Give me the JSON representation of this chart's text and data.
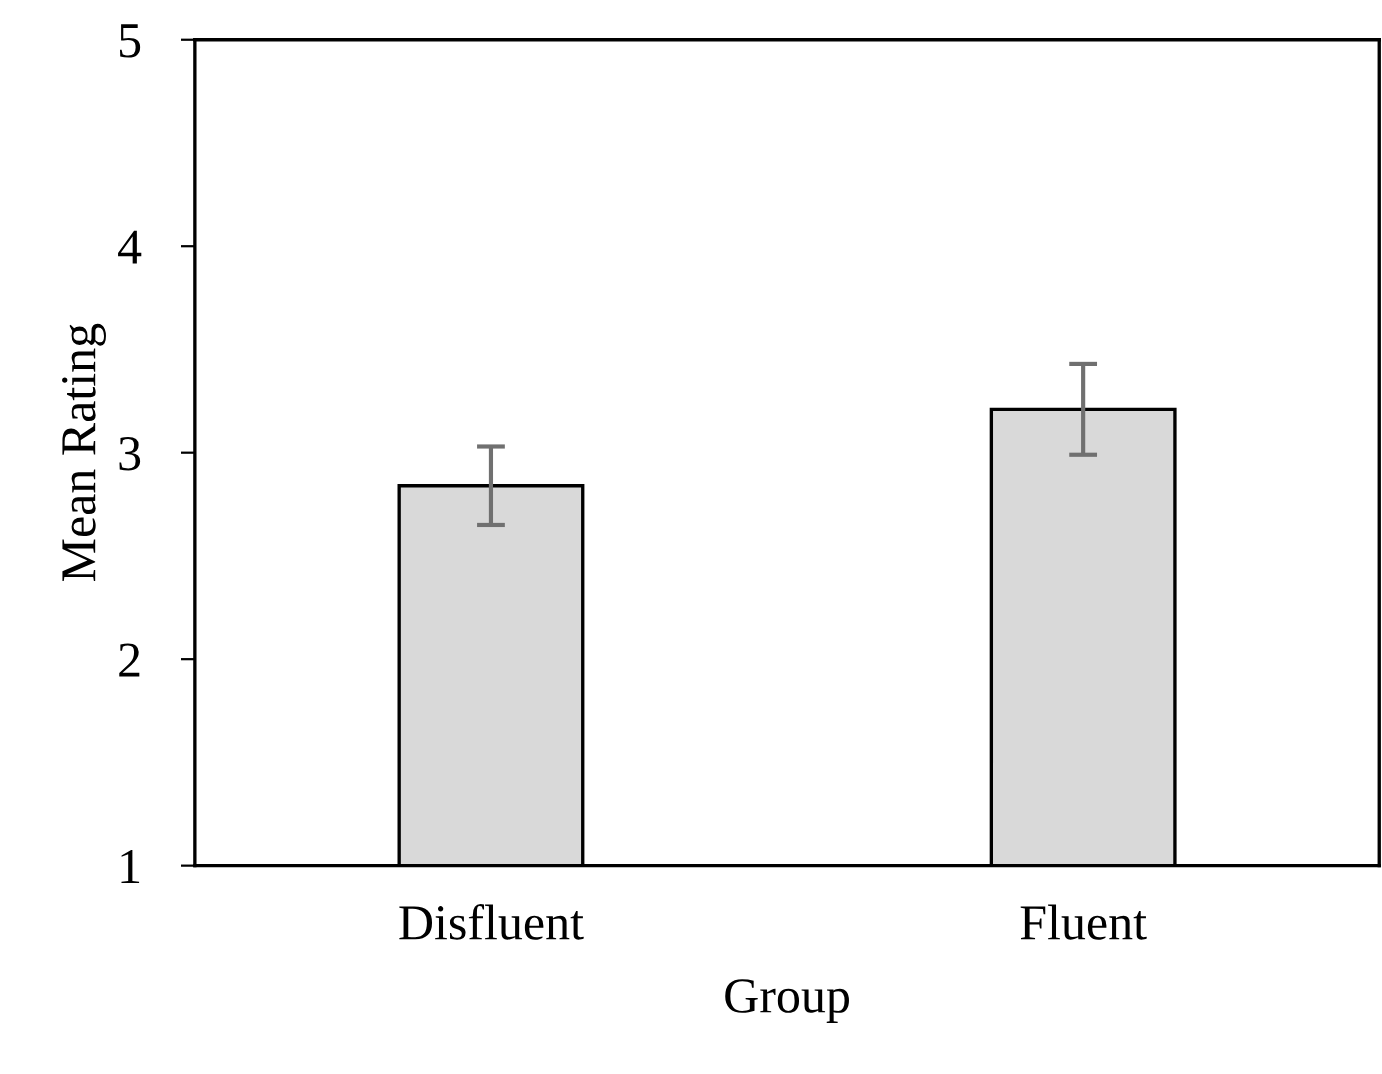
{
  "chart_data": {
    "type": "bar",
    "xlabel": "Group",
    "ylabel": "Mean Rating",
    "categories": [
      "Disfluent",
      "Fluent"
    ],
    "values": [
      2.84,
      3.21
    ],
    "errors": [
      0.19,
      0.22
    ],
    "color": "#d9d9d9",
    "ylim": [
      1,
      5
    ],
    "yticks": [
      1,
      2,
      3,
      4,
      5
    ],
    "grid": false,
    "legend": false
  }
}
